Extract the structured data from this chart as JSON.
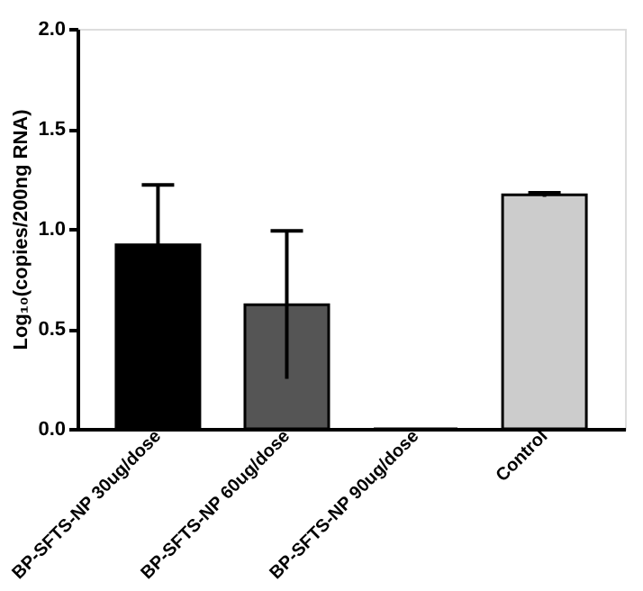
{
  "chart_data": {
    "type": "bar",
    "ylabel": "Log₁₀(copies/200ng RNA)",
    "categories": [
      "BP-SFTS-NP 30ug/dose",
      "BP-SFTS-NP 60ug/dose",
      "BP-SFTS-NP 90ug/dose",
      "Control"
    ],
    "values": [
      0.92,
      0.62,
      0,
      1.17
    ],
    "colors": [
      "#000000",
      "#555555",
      "#000000",
      "#cccccc"
    ],
    "errors": [
      0.3,
      0.37,
      null,
      0.01
    ],
    "ylim": [
      0,
      2
    ],
    "yticks": [
      {
        "value": 0,
        "label": "0.0"
      },
      {
        "value": 0.5,
        "label": "0.5"
      },
      {
        "value": 1,
        "label": "1.0"
      },
      {
        "value": 1.5,
        "label": "1.5"
      },
      {
        "value": 2,
        "label": "2.0"
      }
    ],
    "grid": false
  }
}
